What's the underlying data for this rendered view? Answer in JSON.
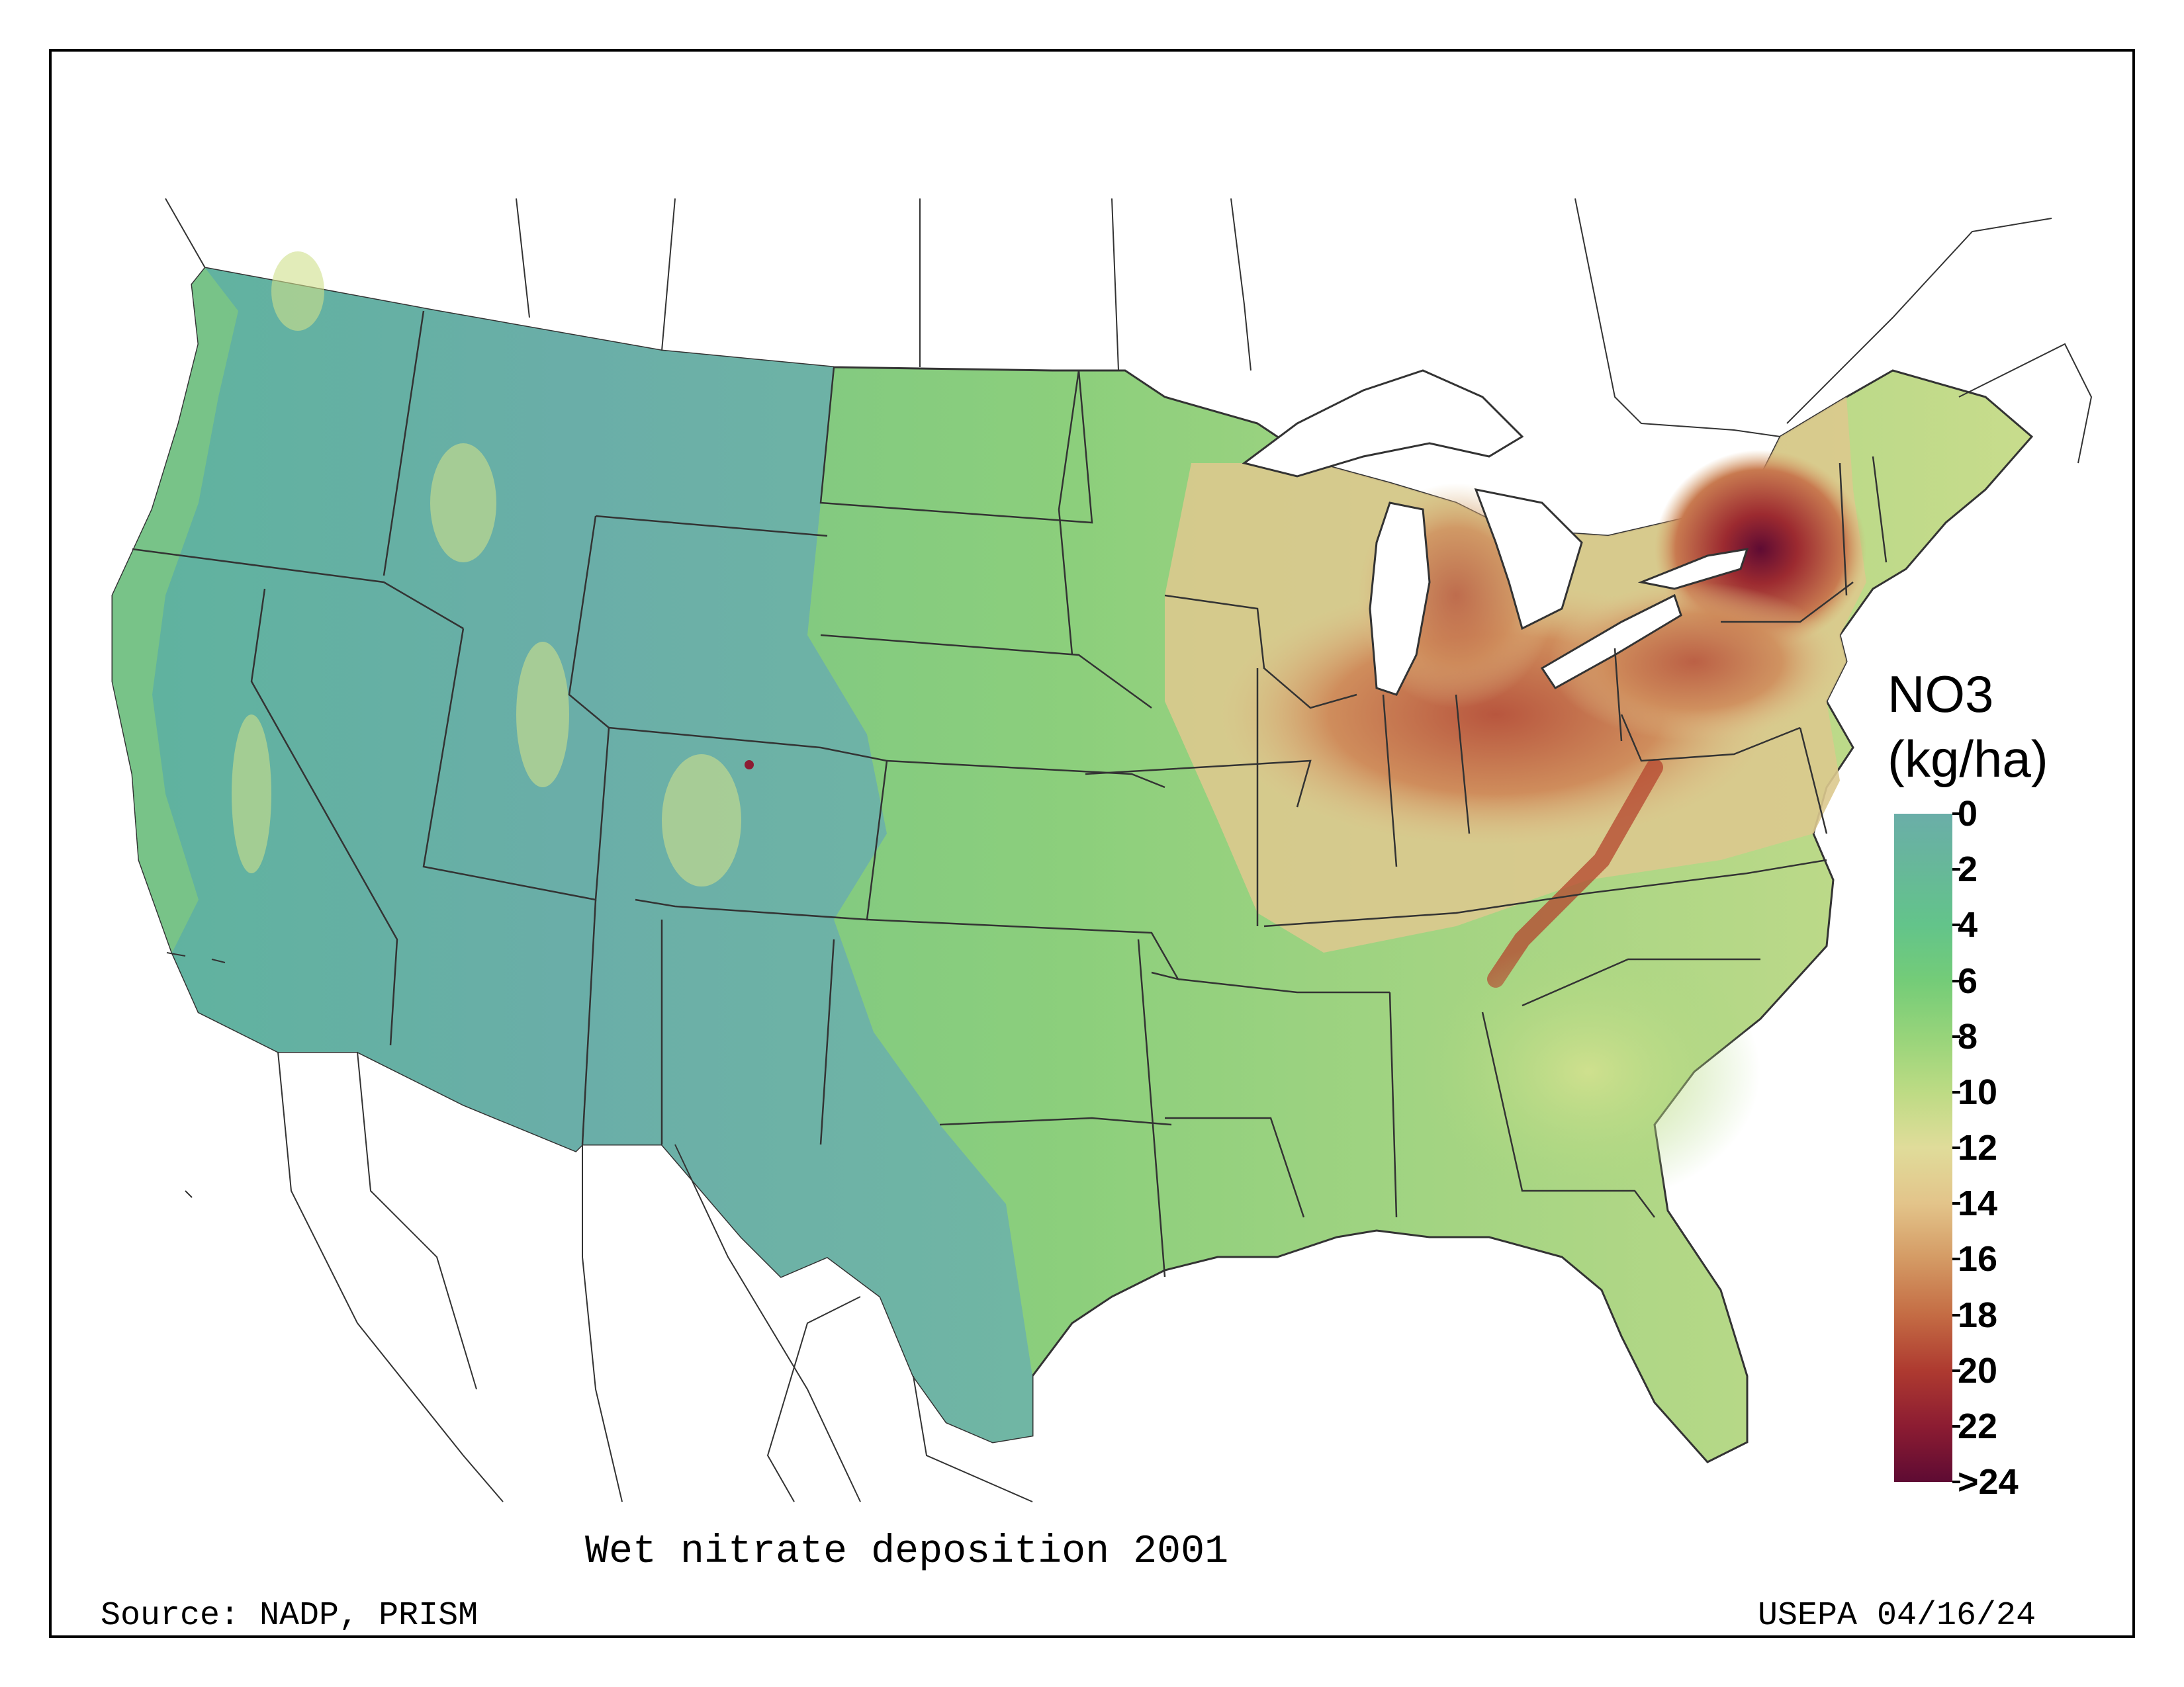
{
  "map": {
    "title": "Wet nitrate deposition 2001",
    "source": "Source: NADP, PRISM",
    "credit": "USEPA 04/16/24"
  },
  "legend": {
    "title_line1": "NO3",
    "title_line2": "(kg/ha)",
    "ticks": [
      "0",
      "2",
      "4",
      "6",
      "8",
      "10",
      "12",
      "14",
      "16",
      "18",
      "20",
      "22",
      ">24"
    ],
    "colors": [
      "#6aaea8",
      "#67b899",
      "#63c48a",
      "#74cc78",
      "#97d47a",
      "#bddb84",
      "#e0dc9a",
      "#e3c48a",
      "#d49a64",
      "#c46c44",
      "#ae3a30",
      "#8c1c32",
      "#5e0b33"
    ]
  }
}
